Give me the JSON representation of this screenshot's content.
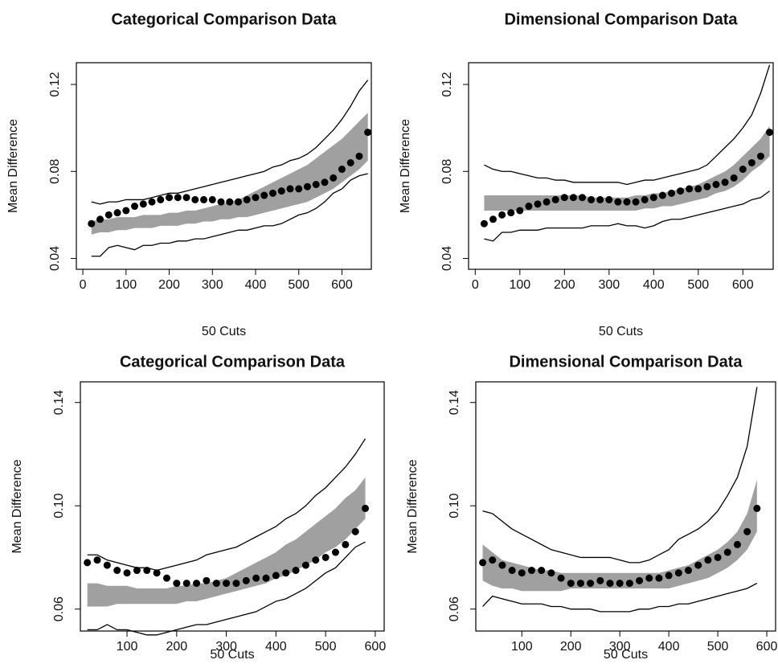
{
  "chart_data": [
    {
      "type": "line",
      "title": "Categorical Comparison Data",
      "xlabel": "50 Cuts",
      "ylabel": "Mean Difference",
      "xlim": [
        -15,
        668
      ],
      "ylim": [
        0.035,
        0.13
      ],
      "xticks": [
        0,
        100,
        200,
        300,
        400,
        500,
        600
      ],
      "yticks": [
        0.04,
        0.08,
        0.12
      ],
      "x": [
        20,
        40,
        60,
        80,
        100,
        120,
        140,
        160,
        180,
        200,
        220,
        240,
        260,
        280,
        300,
        320,
        340,
        360,
        380,
        400,
        420,
        440,
        460,
        480,
        500,
        520,
        540,
        560,
        580,
        600,
        620,
        640,
        660
      ],
      "band": {
        "color": "#a0a0a0",
        "lower": [
          0.051,
          0.052,
          0.052,
          0.053,
          0.053,
          0.054,
          0.054,
          0.054,
          0.055,
          0.055,
          0.055,
          0.056,
          0.056,
          0.057,
          0.057,
          0.058,
          0.058,
          0.059,
          0.059,
          0.06,
          0.061,
          0.062,
          0.063,
          0.064,
          0.065,
          0.066,
          0.068,
          0.07,
          0.072,
          0.075,
          0.078,
          0.081,
          0.085
        ],
        "upper": [
          0.057,
          0.058,
          0.058,
          0.059,
          0.059,
          0.059,
          0.06,
          0.06,
          0.06,
          0.061,
          0.061,
          0.062,
          0.062,
          0.063,
          0.064,
          0.065,
          0.066,
          0.067,
          0.069,
          0.071,
          0.073,
          0.075,
          0.077,
          0.079,
          0.081,
          0.083,
          0.086,
          0.089,
          0.092,
          0.095,
          0.099,
          0.103,
          0.107
        ]
      },
      "series": [
        {
          "color": "#000000",
          "marker": "circle",
          "values": [
            0.056,
            0.058,
            0.06,
            0.061,
            0.062,
            0.064,
            0.065,
            0.066,
            0.067,
            0.068,
            0.068,
            0.068,
            0.067,
            0.067,
            0.067,
            0.066,
            0.066,
            0.066,
            0.067,
            0.068,
            0.069,
            0.07,
            0.071,
            0.072,
            0.072,
            0.073,
            0.074,
            0.075,
            0.077,
            0.081,
            0.084,
            0.087,
            0.098
          ]
        },
        {
          "color": "#000000",
          "values": [
            0.066,
            0.065,
            0.066,
            0.066,
            0.067,
            0.067,
            0.067,
            0.068,
            0.069,
            0.07,
            0.07,
            0.071,
            0.072,
            0.073,
            0.074,
            0.075,
            0.076,
            0.077,
            0.078,
            0.079,
            0.08,
            0.082,
            0.083,
            0.085,
            0.086,
            0.088,
            0.091,
            0.095,
            0.099,
            0.104,
            0.11,
            0.117,
            0.122
          ]
        },
        {
          "color": "#000000",
          "values": [
            0.041,
            0.041,
            0.045,
            0.046,
            0.045,
            0.044,
            0.046,
            0.046,
            0.047,
            0.047,
            0.048,
            0.048,
            0.049,
            0.049,
            0.05,
            0.051,
            0.052,
            0.053,
            0.053,
            0.054,
            0.055,
            0.055,
            0.056,
            0.058,
            0.06,
            0.061,
            0.063,
            0.066,
            0.07,
            0.072,
            0.076,
            0.078,
            0.079
          ]
        }
      ]
    },
    {
      "type": "line",
      "title": "Dimensional Comparison Data",
      "xlabel": "50 Cuts",
      "ylabel": "Mean Difference",
      "xlim": [
        -15,
        668
      ],
      "ylim": [
        0.035,
        0.13
      ],
      "xticks": [
        0,
        100,
        200,
        300,
        400,
        500,
        600
      ],
      "yticks": [
        0.04,
        0.08,
        0.12
      ],
      "x": [
        20,
        40,
        60,
        80,
        100,
        120,
        140,
        160,
        180,
        200,
        220,
        240,
        260,
        280,
        300,
        320,
        340,
        360,
        380,
        400,
        420,
        440,
        460,
        480,
        500,
        520,
        540,
        560,
        580,
        600,
        620,
        640,
        660
      ],
      "band": {
        "color": "#a0a0a0",
        "lower": [
          0.062,
          0.062,
          0.062,
          0.062,
          0.062,
          0.062,
          0.062,
          0.062,
          0.062,
          0.062,
          0.062,
          0.062,
          0.062,
          0.062,
          0.062,
          0.062,
          0.062,
          0.062,
          0.063,
          0.063,
          0.064,
          0.064,
          0.065,
          0.066,
          0.067,
          0.068,
          0.07,
          0.071,
          0.073,
          0.076,
          0.08,
          0.083,
          0.087
        ],
        "upper": [
          0.069,
          0.069,
          0.069,
          0.069,
          0.069,
          0.069,
          0.069,
          0.069,
          0.069,
          0.069,
          0.069,
          0.069,
          0.068,
          0.068,
          0.068,
          0.068,
          0.068,
          0.069,
          0.069,
          0.07,
          0.07,
          0.071,
          0.072,
          0.073,
          0.074,
          0.076,
          0.078,
          0.08,
          0.083,
          0.087,
          0.091,
          0.095,
          0.101
        ]
      },
      "series": [
        {
          "color": "#000000",
          "marker": "circle",
          "values": [
            0.056,
            0.058,
            0.06,
            0.061,
            0.062,
            0.064,
            0.065,
            0.066,
            0.067,
            0.068,
            0.068,
            0.068,
            0.067,
            0.067,
            0.067,
            0.066,
            0.066,
            0.066,
            0.067,
            0.068,
            0.069,
            0.07,
            0.071,
            0.072,
            0.072,
            0.073,
            0.074,
            0.075,
            0.077,
            0.081,
            0.084,
            0.087,
            0.098
          ]
        },
        {
          "color": "#000000",
          "values": [
            0.083,
            0.081,
            0.08,
            0.08,
            0.079,
            0.078,
            0.077,
            0.077,
            0.076,
            0.076,
            0.075,
            0.075,
            0.075,
            0.075,
            0.075,
            0.075,
            0.074,
            0.075,
            0.076,
            0.076,
            0.077,
            0.078,
            0.079,
            0.08,
            0.081,
            0.083,
            0.087,
            0.091,
            0.095,
            0.1,
            0.106,
            0.116,
            0.129
          ]
        },
        {
          "color": "#000000",
          "values": [
            0.049,
            0.048,
            0.052,
            0.052,
            0.053,
            0.053,
            0.053,
            0.054,
            0.054,
            0.054,
            0.054,
            0.054,
            0.055,
            0.055,
            0.055,
            0.056,
            0.055,
            0.055,
            0.054,
            0.055,
            0.057,
            0.058,
            0.058,
            0.059,
            0.06,
            0.061,
            0.062,
            0.063,
            0.064,
            0.065,
            0.067,
            0.068,
            0.071
          ]
        }
      ]
    },
    {
      "type": "line",
      "title": "Categorical Comparison Data",
      "xlabel": "50 Cuts",
      "ylabel": "Mean Difference",
      "xlim": [
        6,
        618
      ],
      "ylim": [
        0.0515,
        0.148
      ],
      "xticks": [
        100,
        200,
        300,
        400,
        500,
        600
      ],
      "yticks": [
        0.06,
        {
          "value": 0.1,
          "label": "0.10"
        },
        0.14
      ],
      "x": [
        20,
        40,
        60,
        80,
        100,
        120,
        140,
        160,
        180,
        200,
        220,
        240,
        260,
        280,
        300,
        320,
        340,
        360,
        380,
        400,
        420,
        440,
        460,
        480,
        500,
        520,
        540,
        560,
        580
      ],
      "band": {
        "color": "#a0a0a0",
        "lower": [
          0.061,
          0.061,
          0.061,
          0.062,
          0.062,
          0.062,
          0.062,
          0.062,
          0.062,
          0.062,
          0.063,
          0.063,
          0.064,
          0.065,
          0.066,
          0.067,
          0.068,
          0.069,
          0.07,
          0.072,
          0.073,
          0.075,
          0.077,
          0.079,
          0.082,
          0.084,
          0.087,
          0.091,
          0.095
        ],
        "upper": [
          0.07,
          0.07,
          0.069,
          0.069,
          0.069,
          0.068,
          0.068,
          0.068,
          0.068,
          0.069,
          0.069,
          0.07,
          0.07,
          0.071,
          0.072,
          0.074,
          0.076,
          0.078,
          0.08,
          0.082,
          0.085,
          0.087,
          0.09,
          0.093,
          0.096,
          0.099,
          0.103,
          0.106,
          0.111
        ]
      },
      "series": [
        {
          "color": "#000000",
          "marker": "circle",
          "values": [
            0.078,
            0.079,
            0.077,
            0.075,
            0.074,
            0.075,
            0.075,
            0.074,
            0.072,
            0.07,
            0.07,
            0.07,
            0.071,
            0.07,
            0.07,
            0.07,
            0.071,
            0.072,
            0.072,
            0.073,
            0.074,
            0.075,
            0.077,
            0.079,
            0.08,
            0.082,
            0.085,
            0.09,
            0.099
          ]
        },
        {
          "color": "#000000",
          "values": [
            0.081,
            0.081,
            0.079,
            0.078,
            0.077,
            0.076,
            0.076,
            0.075,
            0.076,
            0.077,
            0.078,
            0.079,
            0.081,
            0.082,
            0.083,
            0.084,
            0.086,
            0.088,
            0.09,
            0.092,
            0.095,
            0.097,
            0.1,
            0.104,
            0.107,
            0.111,
            0.115,
            0.12,
            0.126
          ]
        },
        {
          "color": "#000000",
          "values": [
            0.052,
            0.052,
            0.054,
            0.052,
            0.052,
            0.051,
            0.05,
            0.05,
            0.051,
            0.052,
            0.053,
            0.054,
            0.054,
            0.055,
            0.056,
            0.057,
            0.058,
            0.059,
            0.061,
            0.063,
            0.064,
            0.066,
            0.068,
            0.071,
            0.074,
            0.076,
            0.08,
            0.084,
            0.086
          ]
        }
      ]
    },
    {
      "type": "line",
      "title": "Dimensional Comparison Data",
      "xlabel": "50 Cuts",
      "ylabel": "Mean Difference",
      "xlim": [
        6,
        618
      ],
      "ylim": [
        0.0515,
        0.148
      ],
      "xticks": [
        100,
        200,
        300,
        400,
        500,
        600
      ],
      "yticks": [
        0.06,
        {
          "value": 0.1,
          "label": "0.10"
        },
        0.14
      ],
      "x": [
        20,
        40,
        60,
        80,
        100,
        120,
        140,
        160,
        180,
        200,
        220,
        240,
        260,
        280,
        300,
        320,
        340,
        360,
        380,
        400,
        420,
        440,
        460,
        480,
        500,
        520,
        540,
        560,
        580
      ],
      "band": {
        "color": "#a0a0a0",
        "lower": [
          0.071,
          0.069,
          0.068,
          0.068,
          0.067,
          0.067,
          0.067,
          0.067,
          0.067,
          0.068,
          0.068,
          0.068,
          0.068,
          0.068,
          0.068,
          0.068,
          0.068,
          0.068,
          0.068,
          0.068,
          0.069,
          0.07,
          0.071,
          0.072,
          0.074,
          0.076,
          0.079,
          0.083,
          0.09
        ],
        "upper": [
          0.085,
          0.082,
          0.079,
          0.078,
          0.077,
          0.076,
          0.075,
          0.075,
          0.074,
          0.074,
          0.074,
          0.074,
          0.074,
          0.074,
          0.074,
          0.074,
          0.074,
          0.074,
          0.074,
          0.075,
          0.076,
          0.077,
          0.079,
          0.081,
          0.083,
          0.086,
          0.09,
          0.097,
          0.11
        ]
      },
      "series": [
        {
          "color": "#000000",
          "marker": "circle",
          "values": [
            0.078,
            0.079,
            0.077,
            0.075,
            0.074,
            0.075,
            0.075,
            0.074,
            0.072,
            0.07,
            0.07,
            0.07,
            0.071,
            0.07,
            0.07,
            0.07,
            0.071,
            0.072,
            0.072,
            0.073,
            0.074,
            0.075,
            0.077,
            0.079,
            0.08,
            0.082,
            0.085,
            0.09,
            0.099
          ]
        },
        {
          "color": "#000000",
          "values": [
            0.098,
            0.097,
            0.094,
            0.091,
            0.089,
            0.087,
            0.085,
            0.083,
            0.082,
            0.081,
            0.08,
            0.08,
            0.08,
            0.08,
            0.079,
            0.078,
            0.078,
            0.079,
            0.081,
            0.083,
            0.087,
            0.089,
            0.091,
            0.094,
            0.098,
            0.104,
            0.111,
            0.123,
            0.146
          ]
        },
        {
          "color": "#000000",
          "values": [
            0.061,
            0.065,
            0.064,
            0.063,
            0.062,
            0.062,
            0.062,
            0.061,
            0.061,
            0.06,
            0.06,
            0.06,
            0.059,
            0.059,
            0.059,
            0.059,
            0.06,
            0.06,
            0.061,
            0.061,
            0.062,
            0.062,
            0.063,
            0.064,
            0.065,
            0.066,
            0.067,
            0.068,
            0.07
          ]
        }
      ]
    }
  ]
}
